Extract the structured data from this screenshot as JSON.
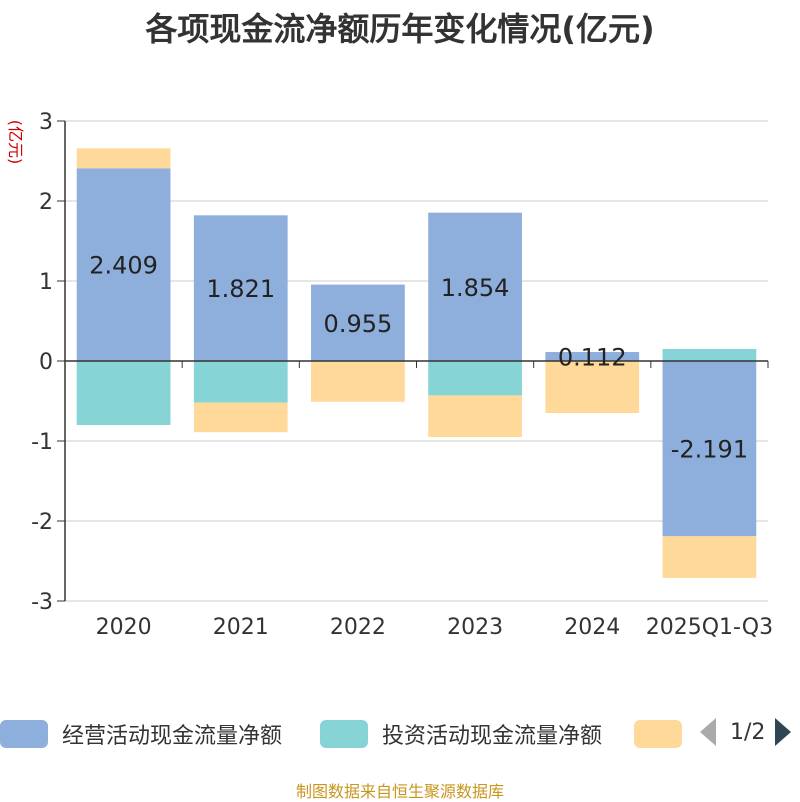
{
  "title": "各项现金流净额历年变化情况(亿元)",
  "source": "制图数据来自恒生聚源数据库",
  "legend": {
    "items": [
      {
        "label": "经营活动现金流量净额",
        "color": "#8eaedb"
      },
      {
        "label": "投资活动现金流量净额",
        "color": "#86d4d6"
      },
      {
        "label": "",
        "color": "#ffd99a"
      }
    ],
    "page": "1/2"
  },
  "chart_data": {
    "type": "bar",
    "stacked": true,
    "title": "各项现金流净额历年变化情况(亿元)",
    "ylabel": "(亿元)",
    "xlabel": "",
    "ylim": [
      -3,
      3
    ],
    "yticks": [
      3,
      2,
      1,
      0,
      -1,
      -2,
      -3
    ],
    "categories": [
      "2020",
      "2021",
      "2022",
      "2023",
      "2024",
      "2025Q1-Q3"
    ],
    "series": [
      {
        "name": "经营活动现金流量净额",
        "color": "#8eaedb",
        "values": [
          2.409,
          1.821,
          0.955,
          1.854,
          0.112,
          -2.191
        ],
        "labels": [
          "2.409",
          "1.821",
          "0.955",
          "1.854",
          "0.112",
          "-2.191"
        ]
      },
      {
        "name": "投资活动现金流量净额",
        "color": "#86d4d6",
        "values": [
          -0.8,
          -0.52,
          -0.01,
          -0.43,
          0.0,
          0.15
        ]
      },
      {
        "name": "",
        "color": "#ffd99a",
        "values": [
          0.25,
          -0.37,
          -0.5,
          -0.52,
          -0.65,
          -0.52
        ]
      }
    ]
  }
}
